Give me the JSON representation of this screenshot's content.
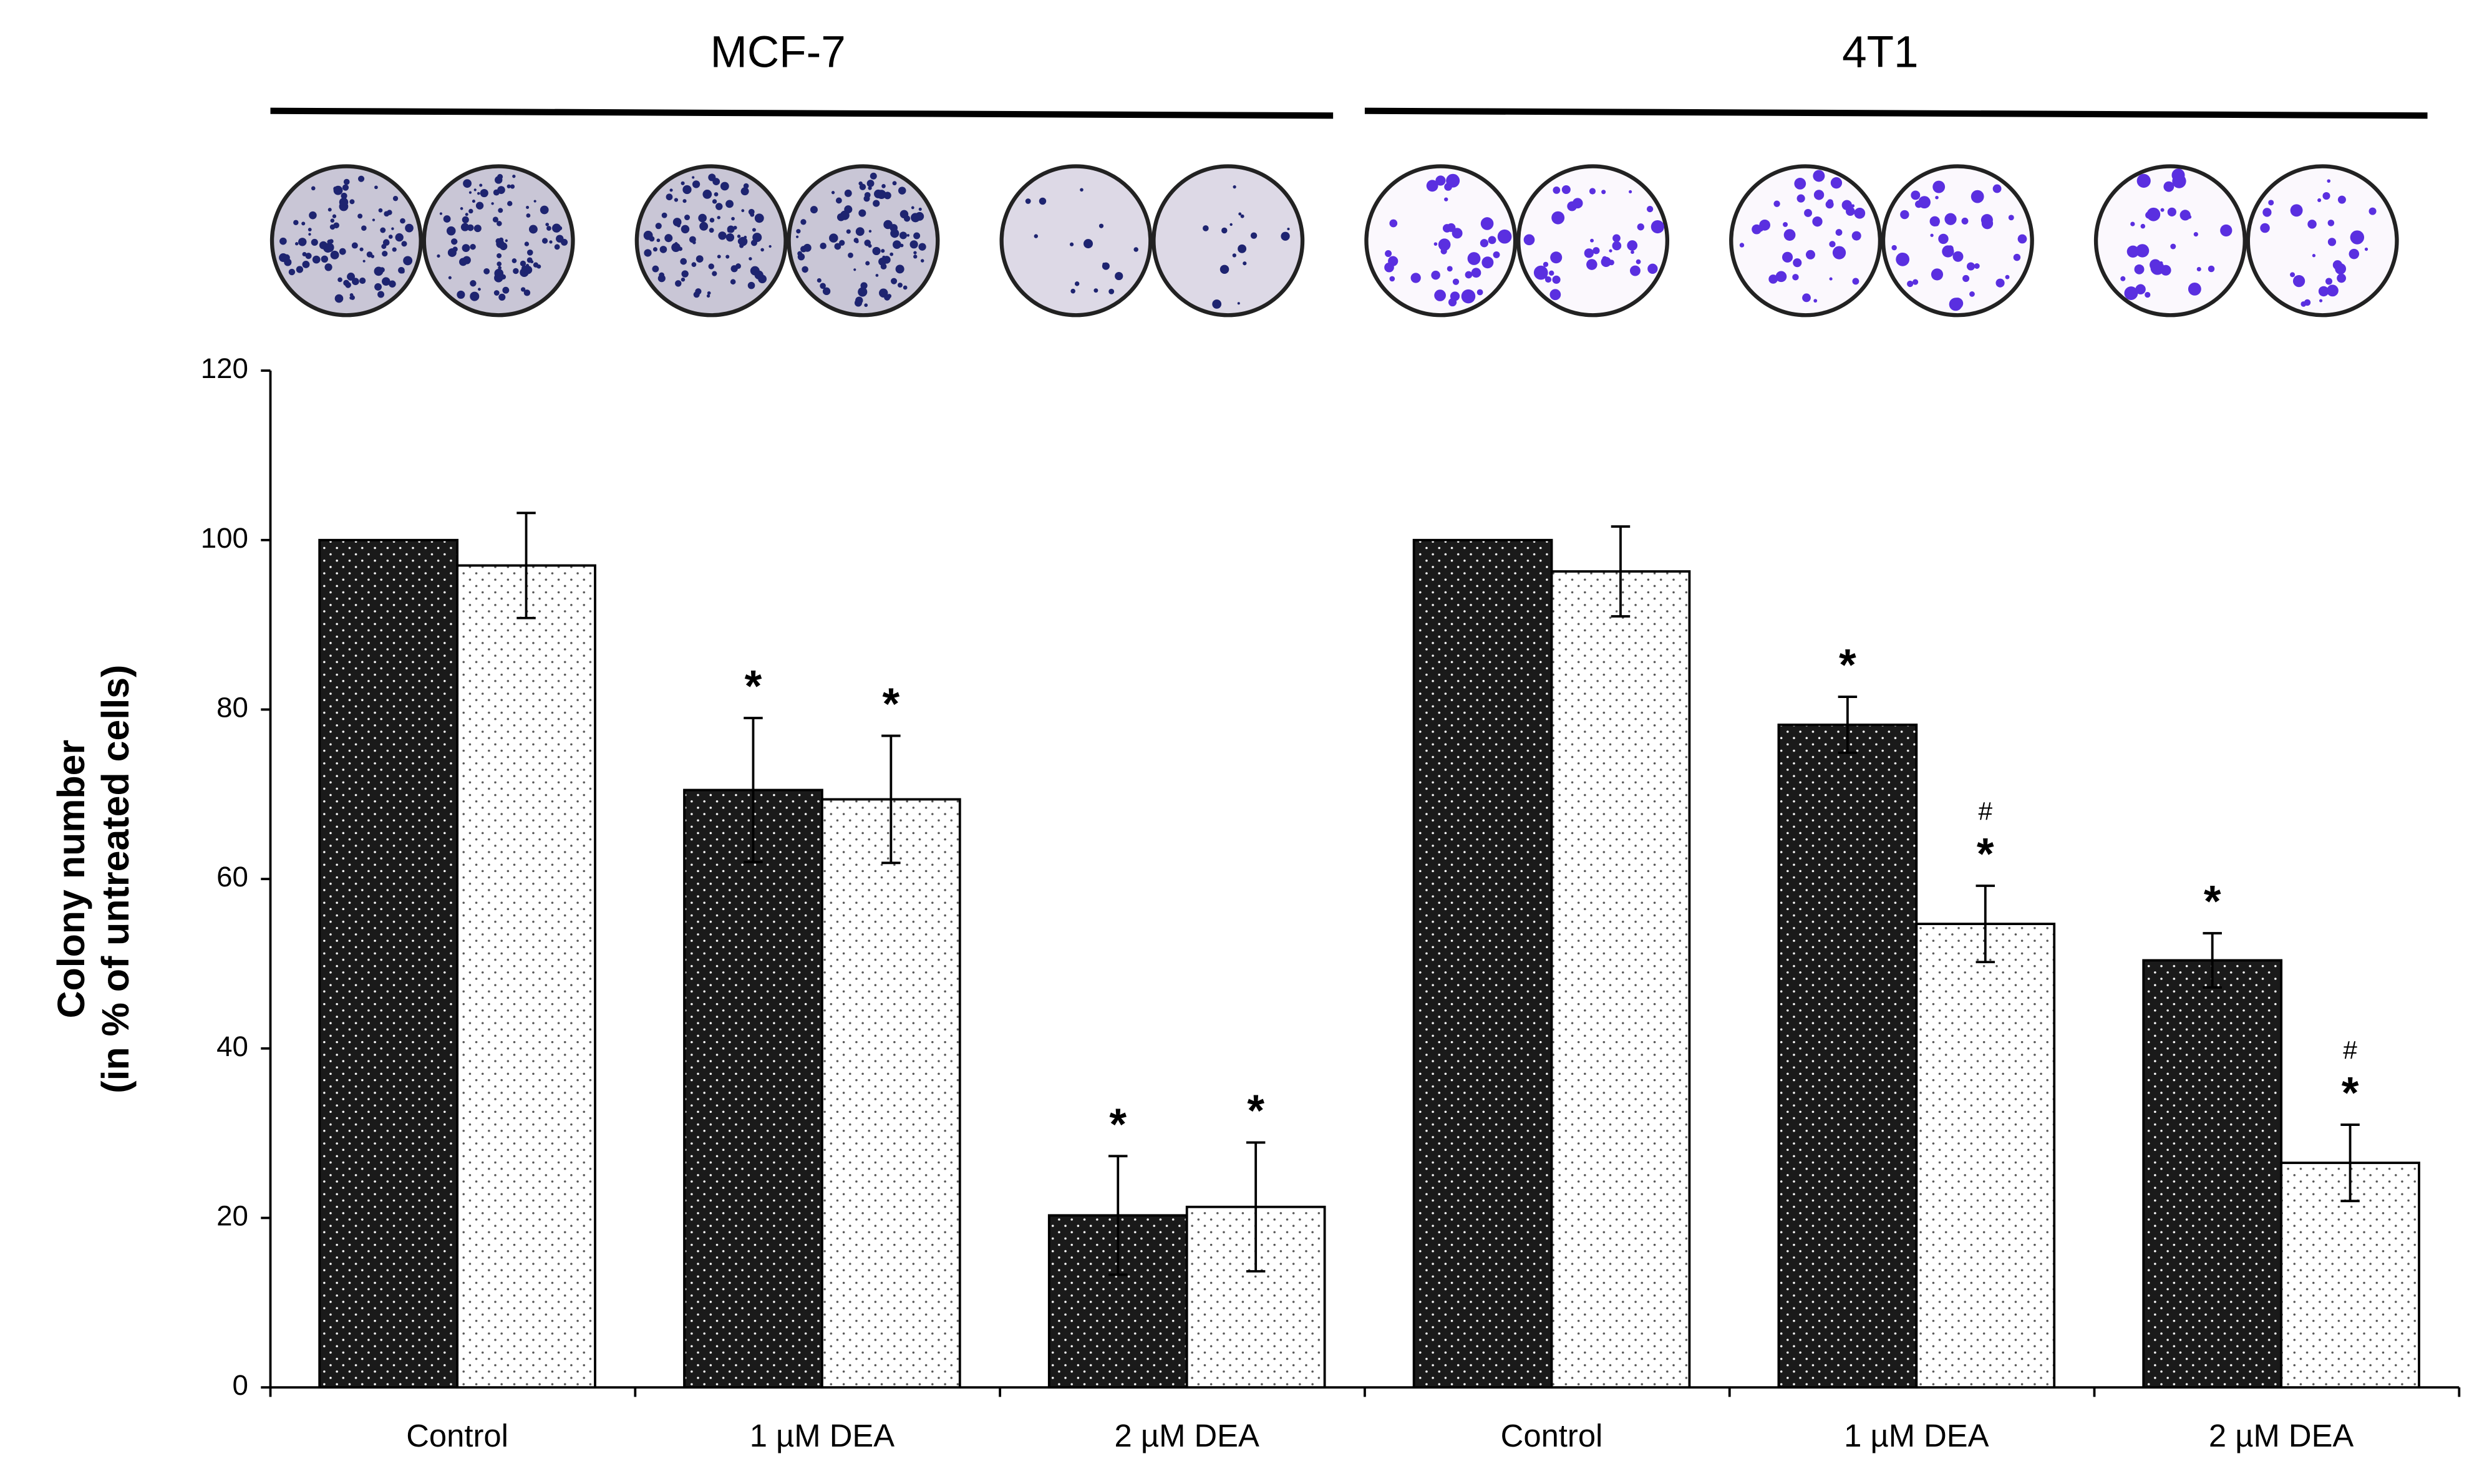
{
  "chart_data": {
    "type": "bar",
    "groups": [
      {
        "label": "MCF-7"
      },
      {
        "label": "4T1"
      }
    ],
    "categories": [
      "Control",
      "1 µM DEA",
      "2 µM DEA",
      "Control",
      "1 µM DEA",
      "2 µM DEA"
    ],
    "y_label": [
      "Colony number",
      "(in % of untreated cells)"
    ],
    "ylim": [
      0,
      120
    ],
    "yticks": [
      0,
      20,
      40,
      60,
      80,
      100,
      120
    ],
    "series": [
      {
        "color": "#1a1a1a",
        "values": [
          100,
          70.5,
          20.3,
          100,
          78.2,
          50.4
        ],
        "errors": [
          null,
          8.5,
          7,
          null,
          3.3,
          3.2
        ],
        "markers": [
          null,
          "*",
          "*",
          null,
          "*",
          "*"
        ],
        "hash": [
          null,
          null,
          null,
          null,
          null,
          null
        ]
      },
      {
        "color": "#ffffff",
        "values": [
          97,
          69.4,
          21.3,
          96.3,
          54.7,
          26.5
        ],
        "errors": [
          6.2,
          7.5,
          7.6,
          5.3,
          4.5,
          4.5
        ],
        "markers": [
          null,
          "*",
          "*",
          null,
          "*",
          "*"
        ],
        "hash": [
          null,
          null,
          null,
          null,
          "#",
          "#"
        ]
      }
    ]
  }
}
